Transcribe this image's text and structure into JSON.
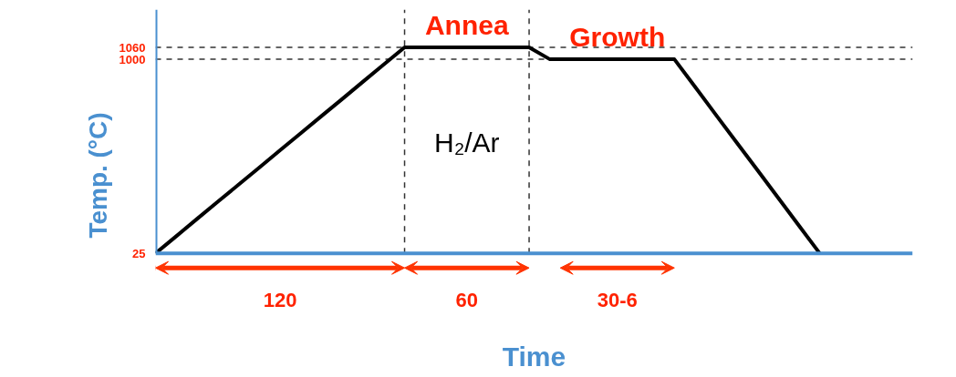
{
  "chart_data": {
    "type": "line",
    "xlabel": "Time",
    "ylabel": "Temp. (°C)",
    "categories": [
      null,
      null,
      null,
      null,
      null,
      null,
      null,
      null,
      null,
      null,
      null,
      null,
      null,
      null,
      null,
      null,
      null,
      null,
      null,
      null,
      null,
      null,
      null,
      null,
      null,
      null,
      null,
      null,
      null,
      null,
      null,
      null,
      null
    ],
    "series": [
      {
        "color": "#000000",
        "values": [
          25,
          111,
          198,
          284,
          370,
          456,
          543,
          629,
          715,
          801,
          888,
          974,
          1060,
          1060,
          1060,
          1060,
          1060,
          1060,
          1060,
          1000,
          1000,
          1000,
          1000,
          1000,
          1000,
          1000,
          861,
          721,
          582,
          443,
          304,
          164,
          25
        ]
      }
    ],
    "ylim": [
      25,
      1250
    ],
    "yticks": [
      25,
      1000,
      1060
    ],
    "grid": false,
    "marker": "none",
    "line_style": "solid",
    "ref_lines": [
      {
        "axis": "y",
        "value": 1060,
        "line_style": "dashed",
        "color": "#333333"
      },
      {
        "axis": "y",
        "value": 1000,
        "line_style": "dashed",
        "color": "#333333"
      }
    ],
    "annotations": [
      {
        "text": "Annea",
        "y": 1060
      },
      {
        "text": "Growth",
        "y": 1000
      },
      "H₂/Ar",
      "120",
      "60",
      "30-6"
    ]
  }
}
